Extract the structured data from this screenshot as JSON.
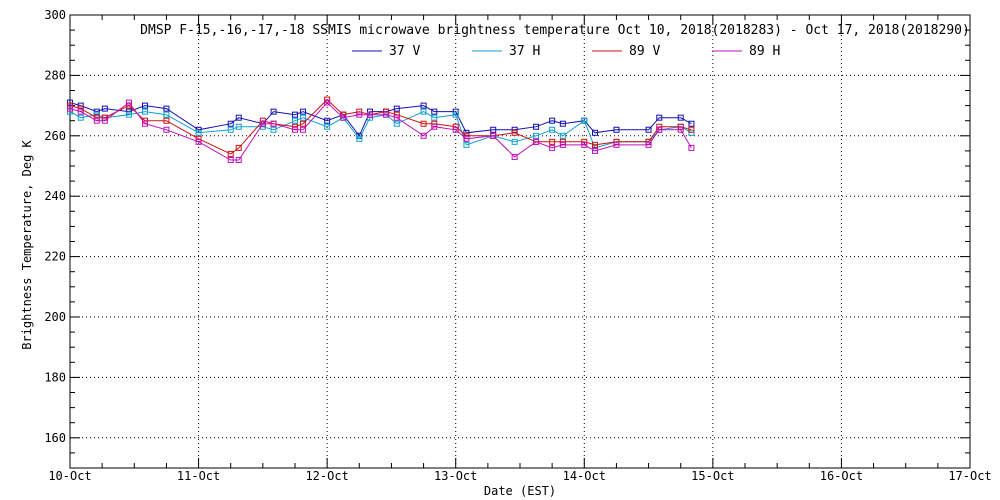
{
  "chart_data": {
    "type": "line",
    "title": "DMSP F-15,-16,-17,-18 SSMIS microwave brightness temperature Oct 10, 2018(2018283) - Oct 17, 2018(2018290)",
    "xlabel": "Date (EST)",
    "ylabel": "Brightness Temperature, Deg K",
    "xlim": [
      "2018-10-10T00:00",
      "2018-10-17T00:00"
    ],
    "ylim": [
      150,
      300
    ],
    "x_ticks": [
      "10-Oct",
      "11-Oct",
      "12-Oct",
      "13-Oct",
      "14-Oct",
      "15-Oct",
      "16-Oct",
      "17-Oct"
    ],
    "y_ticks": [
      160,
      180,
      200,
      220,
      240,
      260,
      280,
      300
    ],
    "grid": true,
    "legend_position": "top-center",
    "series": [
      {
        "name": "37 V",
        "color": "#1010b0",
        "x": [
          "2018-10-10T00:00",
          "2018-10-10T02:00",
          "2018-10-10T05:00",
          "2018-10-10T06:30",
          "2018-10-10T11:00",
          "2018-10-10T14:00",
          "2018-10-10T18:00",
          "2018-10-11T00:00",
          "2018-10-11T06:00",
          "2018-10-11T07:30",
          "2018-10-11T12:00",
          "2018-10-11T14:00",
          "2018-10-11T18:00",
          "2018-10-11T19:30",
          "2018-10-12T00:00",
          "2018-10-12T03:00",
          "2018-10-12T06:00",
          "2018-10-12T08:00",
          "2018-10-12T11:00",
          "2018-10-12T13:00",
          "2018-10-12T18:00",
          "2018-10-12T20:00",
          "2018-10-13T00:00",
          "2018-10-13T02:00",
          "2018-10-13T07:00",
          "2018-10-13T11:00",
          "2018-10-13T15:00",
          "2018-10-13T18:00",
          "2018-10-13T20:00",
          "2018-10-14T00:00",
          "2018-10-14T02:00",
          "2018-10-14T06:00",
          "2018-10-14T12:00",
          "2018-10-14T14:00",
          "2018-10-14T18:00",
          "2018-10-14T20:00"
        ],
        "values": [
          271,
          270,
          268,
          269,
          268,
          270,
          269,
          262,
          264,
          266,
          264,
          268,
          267,
          268,
          265,
          267,
          260,
          268,
          268,
          269,
          270,
          268,
          268,
          261,
          262,
          262,
          263,
          265,
          264,
          265,
          261,
          262,
          262,
          266,
          266,
          264
        ]
      },
      {
        "name": "37 H",
        "color": "#10a0d0",
        "x": [
          "2018-10-10T00:00",
          "2018-10-10T02:00",
          "2018-10-10T05:00",
          "2018-10-10T06:30",
          "2018-10-10T11:00",
          "2018-10-10T14:00",
          "2018-10-10T18:00",
          "2018-10-11T00:00",
          "2018-10-11T06:00",
          "2018-10-11T07:30",
          "2018-10-11T12:00",
          "2018-10-11T14:00",
          "2018-10-11T18:00",
          "2018-10-11T19:30",
          "2018-10-12T00:00",
          "2018-10-12T03:00",
          "2018-10-12T06:00",
          "2018-10-12T08:00",
          "2018-10-12T11:00",
          "2018-10-12T13:00",
          "2018-10-12T18:00",
          "2018-10-12T20:00",
          "2018-10-13T00:00",
          "2018-10-13T02:00",
          "2018-10-13T07:00",
          "2018-10-13T11:00",
          "2018-10-13T15:00",
          "2018-10-13T18:00",
          "2018-10-13T20:00",
          "2018-10-14T00:00",
          "2018-10-14T02:00",
          "2018-10-14T06:00",
          "2018-10-14T12:00",
          "2018-10-14T14:00",
          "2018-10-14T18:00",
          "2018-10-14T20:00"
        ],
        "values": [
          268,
          266,
          267,
          266,
          267,
          268,
          267,
          261,
          262,
          263,
          263,
          262,
          265,
          266,
          263,
          266,
          259,
          266,
          267,
          264,
          268,
          266,
          267,
          257,
          260,
          258,
          260,
          262,
          260,
          265,
          256,
          258,
          258,
          262,
          263,
          261
        ]
      },
      {
        "name": "89 V",
        "color": "#d01010",
        "x": [
          "2018-10-10T00:00",
          "2018-10-10T02:00",
          "2018-10-10T05:00",
          "2018-10-10T06:30",
          "2018-10-10T11:00",
          "2018-10-10T14:00",
          "2018-10-10T18:00",
          "2018-10-11T00:00",
          "2018-10-11T06:00",
          "2018-10-11T07:30",
          "2018-10-11T12:00",
          "2018-10-11T14:00",
          "2018-10-11T18:00",
          "2018-10-11T19:30",
          "2018-10-12T00:00",
          "2018-10-12T03:00",
          "2018-10-12T06:00",
          "2018-10-12T08:00",
          "2018-10-12T11:00",
          "2018-10-12T13:00",
          "2018-10-12T18:00",
          "2018-10-12T20:00",
          "2018-10-13T00:00",
          "2018-10-13T02:00",
          "2018-10-13T07:00",
          "2018-10-13T11:00",
          "2018-10-13T15:00",
          "2018-10-13T18:00",
          "2018-10-13T20:00",
          "2018-10-14T00:00",
          "2018-10-14T02:00",
          "2018-10-14T06:00",
          "2018-10-14T12:00",
          "2018-10-14T14:00",
          "2018-10-14T18:00",
          "2018-10-14T20:00"
        ],
        "values": [
          270,
          269,
          266,
          266,
          270,
          265,
          265,
          259,
          254,
          256,
          265,
          264,
          263,
          264,
          272,
          267,
          268,
          267,
          268,
          267,
          264,
          264,
          263,
          260,
          260,
          261,
          258,
          258,
          258,
          258,
          257,
          258,
          258,
          263,
          263,
          262
        ]
      },
      {
        "name": "89 H",
        "color": "#c010c0",
        "x": [
          "2018-10-10T00:00",
          "2018-10-10T02:00",
          "2018-10-10T05:00",
          "2018-10-10T06:30",
          "2018-10-10T11:00",
          "2018-10-10T14:00",
          "2018-10-10T18:00",
          "2018-10-11T00:00",
          "2018-10-11T06:00",
          "2018-10-11T07:30",
          "2018-10-11T12:00",
          "2018-10-11T14:00",
          "2018-10-11T18:00",
          "2018-10-11T19:30",
          "2018-10-12T00:00",
          "2018-10-12T03:00",
          "2018-10-12T06:00",
          "2018-10-12T08:00",
          "2018-10-12T11:00",
          "2018-10-12T13:00",
          "2018-10-12T18:00",
          "2018-10-12T20:00",
          "2018-10-13T00:00",
          "2018-10-13T02:00",
          "2018-10-13T07:00",
          "2018-10-13T11:00",
          "2018-10-13T15:00",
          "2018-10-13T18:00",
          "2018-10-13T20:00",
          "2018-10-14T00:00",
          "2018-10-14T02:00",
          "2018-10-14T06:00",
          "2018-10-14T12:00",
          "2018-10-14T14:00",
          "2018-10-14T18:00",
          "2018-10-14T20:00"
        ],
        "values": [
          269,
          268,
          265,
          265,
          271,
          264,
          262,
          258,
          252,
          252,
          264,
          264,
          262,
          262,
          271,
          266,
          267,
          267,
          267,
          266,
          260,
          263,
          262,
          259,
          260,
          253,
          258,
          256,
          257,
          257,
          255,
          257,
          257,
          262,
          262,
          256
        ]
      }
    ]
  }
}
